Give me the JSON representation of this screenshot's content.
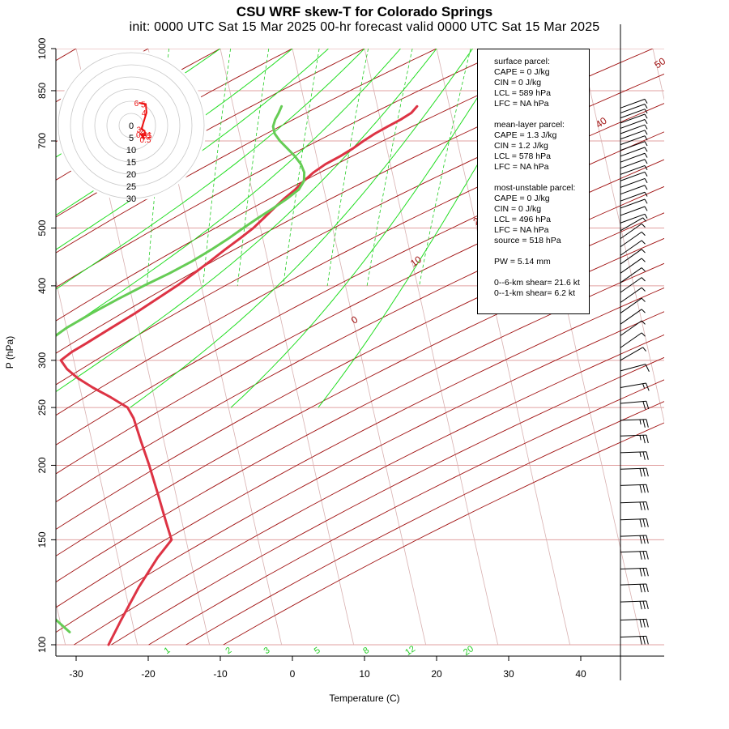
{
  "title": "CSU WRF skew-T for Colorado Springs",
  "subtitle": "init: 0000 UTC Sat 15 Mar 2025    00-hr forecast valid 0000 UTC Sat 15 Mar 2025",
  "info": {
    "lines": [
      "surface parcel:",
      "CAPE = 0 J/kg",
      "CIN = 0 J/kg",
      "LCL = 589 hPa",
      "LFC = NA hPa",
      "",
      "mean-layer parcel:",
      "CAPE = 1.3 J/kg",
      "CIN = 1.2 J/kg",
      "LCL = 578 hPa",
      "LFC = NA hPa",
      "",
      "most-unstable parcel:",
      "CAPE = 0 J/kg",
      "CIN = 0 J/kg",
      "LCL = 496 hPa",
      "LFC = NA hPa",
      "source = 518 hPa",
      "",
      "PW =  5.14 mm",
      "",
      "0--6-km shear= 21.6 kt",
      "0--1-km shear= 6.2 kt"
    ]
  },
  "colors": {
    "temperature": "#dd3344",
    "dewpoint": "#66cc55",
    "dry_adiabat": "#a01010",
    "moist_adiabat": "#22dd22",
    "mixing_ratio": "#22cc22",
    "isobar": "#e0a0a0",
    "skewed_isotherm": "#d8b0b0",
    "hodograph": "#ee1111"
  },
  "chart_data": {
    "type": "line",
    "title": "CSU WRF skew-T for Colorado Springs",
    "xlabel": "Temperature (C)",
    "ylabel": "P (hPa)",
    "x_ticks": [
      -30,
      -20,
      -10,
      0,
      10,
      20,
      30,
      40
    ],
    "xlim": [
      -33,
      40
    ],
    "y_ticks": [
      100,
      150,
      200,
      250,
      300,
      400,
      500,
      700,
      850,
      1000
    ],
    "ylim": [
      1000,
      100
    ],
    "y_scale": "log",
    "series": [
      {
        "role": "temperature",
        "points": [
          {
            "p": 800,
            "t": 15.5
          },
          {
            "p": 780,
            "t": 14.5
          },
          {
            "p": 760,
            "t": 12.8
          },
          {
            "p": 740,
            "t": 10.8
          },
          {
            "p": 720,
            "t": 8.8
          },
          {
            "p": 700,
            "t": 7.0
          },
          {
            "p": 680,
            "t": 5.3
          },
          {
            "p": 660,
            "t": 3.3
          },
          {
            "p": 640,
            "t": 1.0
          },
          {
            "p": 620,
            "t": -0.9
          },
          {
            "p": 600,
            "t": -2.5
          },
          {
            "p": 580,
            "t": -4.0
          },
          {
            "p": 560,
            "t": -5.8
          },
          {
            "p": 540,
            "t": -7.5
          },
          {
            "p": 520,
            "t": -9.2
          },
          {
            "p": 500,
            "t": -11.0
          },
          {
            "p": 480,
            "t": -13.2
          },
          {
            "p": 460,
            "t": -15.6
          },
          {
            "p": 440,
            "t": -18.0
          },
          {
            "p": 420,
            "t": -20.6
          },
          {
            "p": 400,
            "t": -23.4
          },
          {
            "p": 380,
            "t": -26.6
          },
          {
            "p": 360,
            "t": -30.0
          },
          {
            "p": 340,
            "t": -33.8
          },
          {
            "p": 320,
            "t": -37.8
          },
          {
            "p": 310,
            "t": -40.0
          },
          {
            "p": 300,
            "t": -41.8
          },
          {
            "p": 290,
            "t": -41.2
          },
          {
            "p": 280,
            "t": -40.0
          },
          {
            "p": 270,
            "t": -38.2
          },
          {
            "p": 260,
            "t": -36.0
          },
          {
            "p": 250,
            "t": -34.0
          },
          {
            "p": 240,
            "t": -33.5
          },
          {
            "p": 220,
            "t": -33.2
          },
          {
            "p": 200,
            "t": -32.8
          },
          {
            "p": 180,
            "t": -32.5
          },
          {
            "p": 160,
            "t": -32.2
          },
          {
            "p": 150,
            "t": -32.0
          },
          {
            "p": 140,
            "t": -34.5
          },
          {
            "p": 125,
            "t": -38.0
          },
          {
            "p": 110,
            "t": -41.5
          },
          {
            "p": 100,
            "t": -44.0
          }
        ]
      },
      {
        "role": "dewpoint",
        "points": [
          {
            "p": 800,
            "t": -3.3
          },
          {
            "p": 780,
            "t": -3.9
          },
          {
            "p": 760,
            "t": -4.6
          },
          {
            "p": 740,
            "t": -5.1
          },
          {
            "p": 720,
            "t": -5.1
          },
          {
            "p": 700,
            "t": -4.6
          },
          {
            "p": 680,
            "t": -3.8
          },
          {
            "p": 660,
            "t": -3.0
          },
          {
            "p": 640,
            "t": -2.4
          },
          {
            "p": 620,
            "t": -2.2
          },
          {
            "p": 600,
            "t": -2.5
          },
          {
            "p": 580,
            "t": -3.5
          },
          {
            "p": 560,
            "t": -5.4
          },
          {
            "p": 540,
            "t": -7.6
          },
          {
            "p": 520,
            "t": -10.0
          },
          {
            "p": 500,
            "t": -12.4
          },
          {
            "p": 480,
            "t": -14.8
          },
          {
            "p": 460,
            "t": -17.5
          },
          {
            "p": 440,
            "t": -20.5
          },
          {
            "p": 420,
            "t": -24.0
          },
          {
            "p": 400,
            "t": -28.0
          },
          {
            "p": 380,
            "t": -32.0
          },
          {
            "p": 360,
            "t": -36.0
          },
          {
            "p": 340,
            "t": -40.0
          },
          {
            "p": 320,
            "t": -43.5
          },
          {
            "p": 300,
            "t": -47.0
          },
          {
            "p": 290,
            "t": -48.8
          },
          {
            "p": 280,
            "t": -51.0
          },
          {
            "p": 270,
            "t": -54.5
          },
          {
            "p": 260,
            "t": -62.0
          },
          {
            "p": 255,
            "t": -72.0
          },
          {
            "p": 250,
            "t": -80.0
          },
          {
            "p": 240,
            "t": -81.5
          },
          {
            "p": 230,
            "t": -83.0
          },
          {
            "p": 220,
            "t": -80.5
          },
          {
            "p": 210,
            "t": -77.0
          },
          {
            "p": 200,
            "t": -74.5
          },
          {
            "p": 190,
            "t": -72.5
          },
          {
            "p": 180,
            "t": -70.0
          },
          {
            "p": 170,
            "t": -67.5
          },
          {
            "p": 160,
            "t": -65.0
          },
          {
            "p": 150,
            "t": -62.0
          },
          {
            "p": 140,
            "t": -59.0
          },
          {
            "p": 130,
            "t": -56.0
          },
          {
            "p": 120,
            "t": -53.0
          },
          {
            "p": 110,
            "t": -50.5
          },
          {
            "p": 105,
            "t": -49.0
          }
        ]
      }
    ],
    "isotherm_labels": [
      0,
      10,
      20,
      30,
      40,
      50
    ],
    "mixing_ratio_labels": [
      "1",
      "2",
      "3",
      "5",
      "8",
      "12",
      "20"
    ],
    "hodograph": {
      "ring_labels": [
        "0",
        "5",
        "10",
        "15",
        "20",
        "25",
        "30"
      ],
      "points": [
        {
          "label": "0.5",
          "u": 1.5,
          "v": -3.0
        },
        {
          "label": "0.01",
          "u": 0.0,
          "v": -1.0
        },
        {
          "label": "1.5",
          "u": 1.8,
          "v": -1.4
        },
        {
          "label": "2",
          "u": 1.5,
          "v": 0.5
        },
        {
          "label": "3",
          "u": 0.2,
          "v": 1.2
        },
        {
          "label": "4",
          "u": 2.3,
          "v": 8.0
        },
        {
          "label": "5",
          "u": 2.0,
          "v": 11.5
        },
        {
          "label": "6",
          "u": -0.8,
          "v": 12.0
        }
      ]
    },
    "wind_barbs": [
      {
        "p": 103,
        "speed": 30,
        "dir": 268
      },
      {
        "p": 110,
        "speed": 30,
        "dir": 268
      },
      {
        "p": 118,
        "speed": 30,
        "dir": 268
      },
      {
        "p": 126,
        "speed": 30,
        "dir": 268
      },
      {
        "p": 134,
        "speed": 30,
        "dir": 268
      },
      {
        "p": 143,
        "speed": 30,
        "dir": 268
      },
      {
        "p": 152,
        "speed": 30,
        "dir": 268
      },
      {
        "p": 162,
        "speed": 30,
        "dir": 268
      },
      {
        "p": 173,
        "speed": 30,
        "dir": 268
      },
      {
        "p": 185,
        "speed": 30,
        "dir": 268
      },
      {
        "p": 197,
        "speed": 30,
        "dir": 268
      },
      {
        "p": 210,
        "speed": 25,
        "dir": 268
      },
      {
        "p": 224,
        "speed": 25,
        "dir": 268
      },
      {
        "p": 238,
        "speed": 25,
        "dir": 268
      },
      {
        "p": 254,
        "speed": 20,
        "dir": 265
      },
      {
        "p": 270,
        "speed": 15,
        "dir": 260
      },
      {
        "p": 288,
        "speed": 10,
        "dir": 255
      },
      {
        "p": 300,
        "speed": 5,
        "dir": 240
      },
      {
        "p": 315,
        "speed": 5,
        "dir": 235
      },
      {
        "p": 330,
        "speed": 5,
        "dir": 235
      },
      {
        "p": 345,
        "speed": 5,
        "dir": 235
      },
      {
        "p": 360,
        "speed": 5,
        "dir": 235
      },
      {
        "p": 375,
        "speed": 5,
        "dir": 235
      },
      {
        "p": 390,
        "speed": 5,
        "dir": 235
      },
      {
        "p": 405,
        "speed": 5,
        "dir": 235
      },
      {
        "p": 420,
        "speed": 5,
        "dir": 235
      },
      {
        "p": 435,
        "speed": 5,
        "dir": 235
      },
      {
        "p": 450,
        "speed": 5,
        "dir": 235
      },
      {
        "p": 465,
        "speed": 5,
        "dir": 235
      },
      {
        "p": 480,
        "speed": 5,
        "dir": 235
      },
      {
        "p": 495,
        "speed": 5,
        "dir": 240
      },
      {
        "p": 510,
        "speed": 5,
        "dir": 250
      },
      {
        "p": 525,
        "speed": 5,
        "dir": 250
      },
      {
        "p": 540,
        "speed": 5,
        "dir": 250
      },
      {
        "p": 555,
        "speed": 5,
        "dir": 250
      },
      {
        "p": 570,
        "speed": 5,
        "dir": 250
      },
      {
        "p": 585,
        "speed": 5,
        "dir": 250
      },
      {
        "p": 600,
        "speed": 5,
        "dir": 250
      },
      {
        "p": 615,
        "speed": 5,
        "dir": 250
      },
      {
        "p": 630,
        "speed": 5,
        "dir": 250
      },
      {
        "p": 645,
        "speed": 5,
        "dir": 250
      },
      {
        "p": 660,
        "speed": 5,
        "dir": 250
      },
      {
        "p": 675,
        "speed": 5,
        "dir": 250
      },
      {
        "p": 690,
        "speed": 5,
        "dir": 250
      },
      {
        "p": 705,
        "speed": 5,
        "dir": 250
      },
      {
        "p": 720,
        "speed": 5,
        "dir": 250
      },
      {
        "p": 735,
        "speed": 5,
        "dir": 250
      },
      {
        "p": 750,
        "speed": 5,
        "dir": 250
      },
      {
        "p": 765,
        "speed": 5,
        "dir": 250
      },
      {
        "p": 780,
        "speed": 5,
        "dir": 250
      },
      {
        "p": 795,
        "speed": 5,
        "dir": 250
      }
    ],
    "grid": true
  }
}
